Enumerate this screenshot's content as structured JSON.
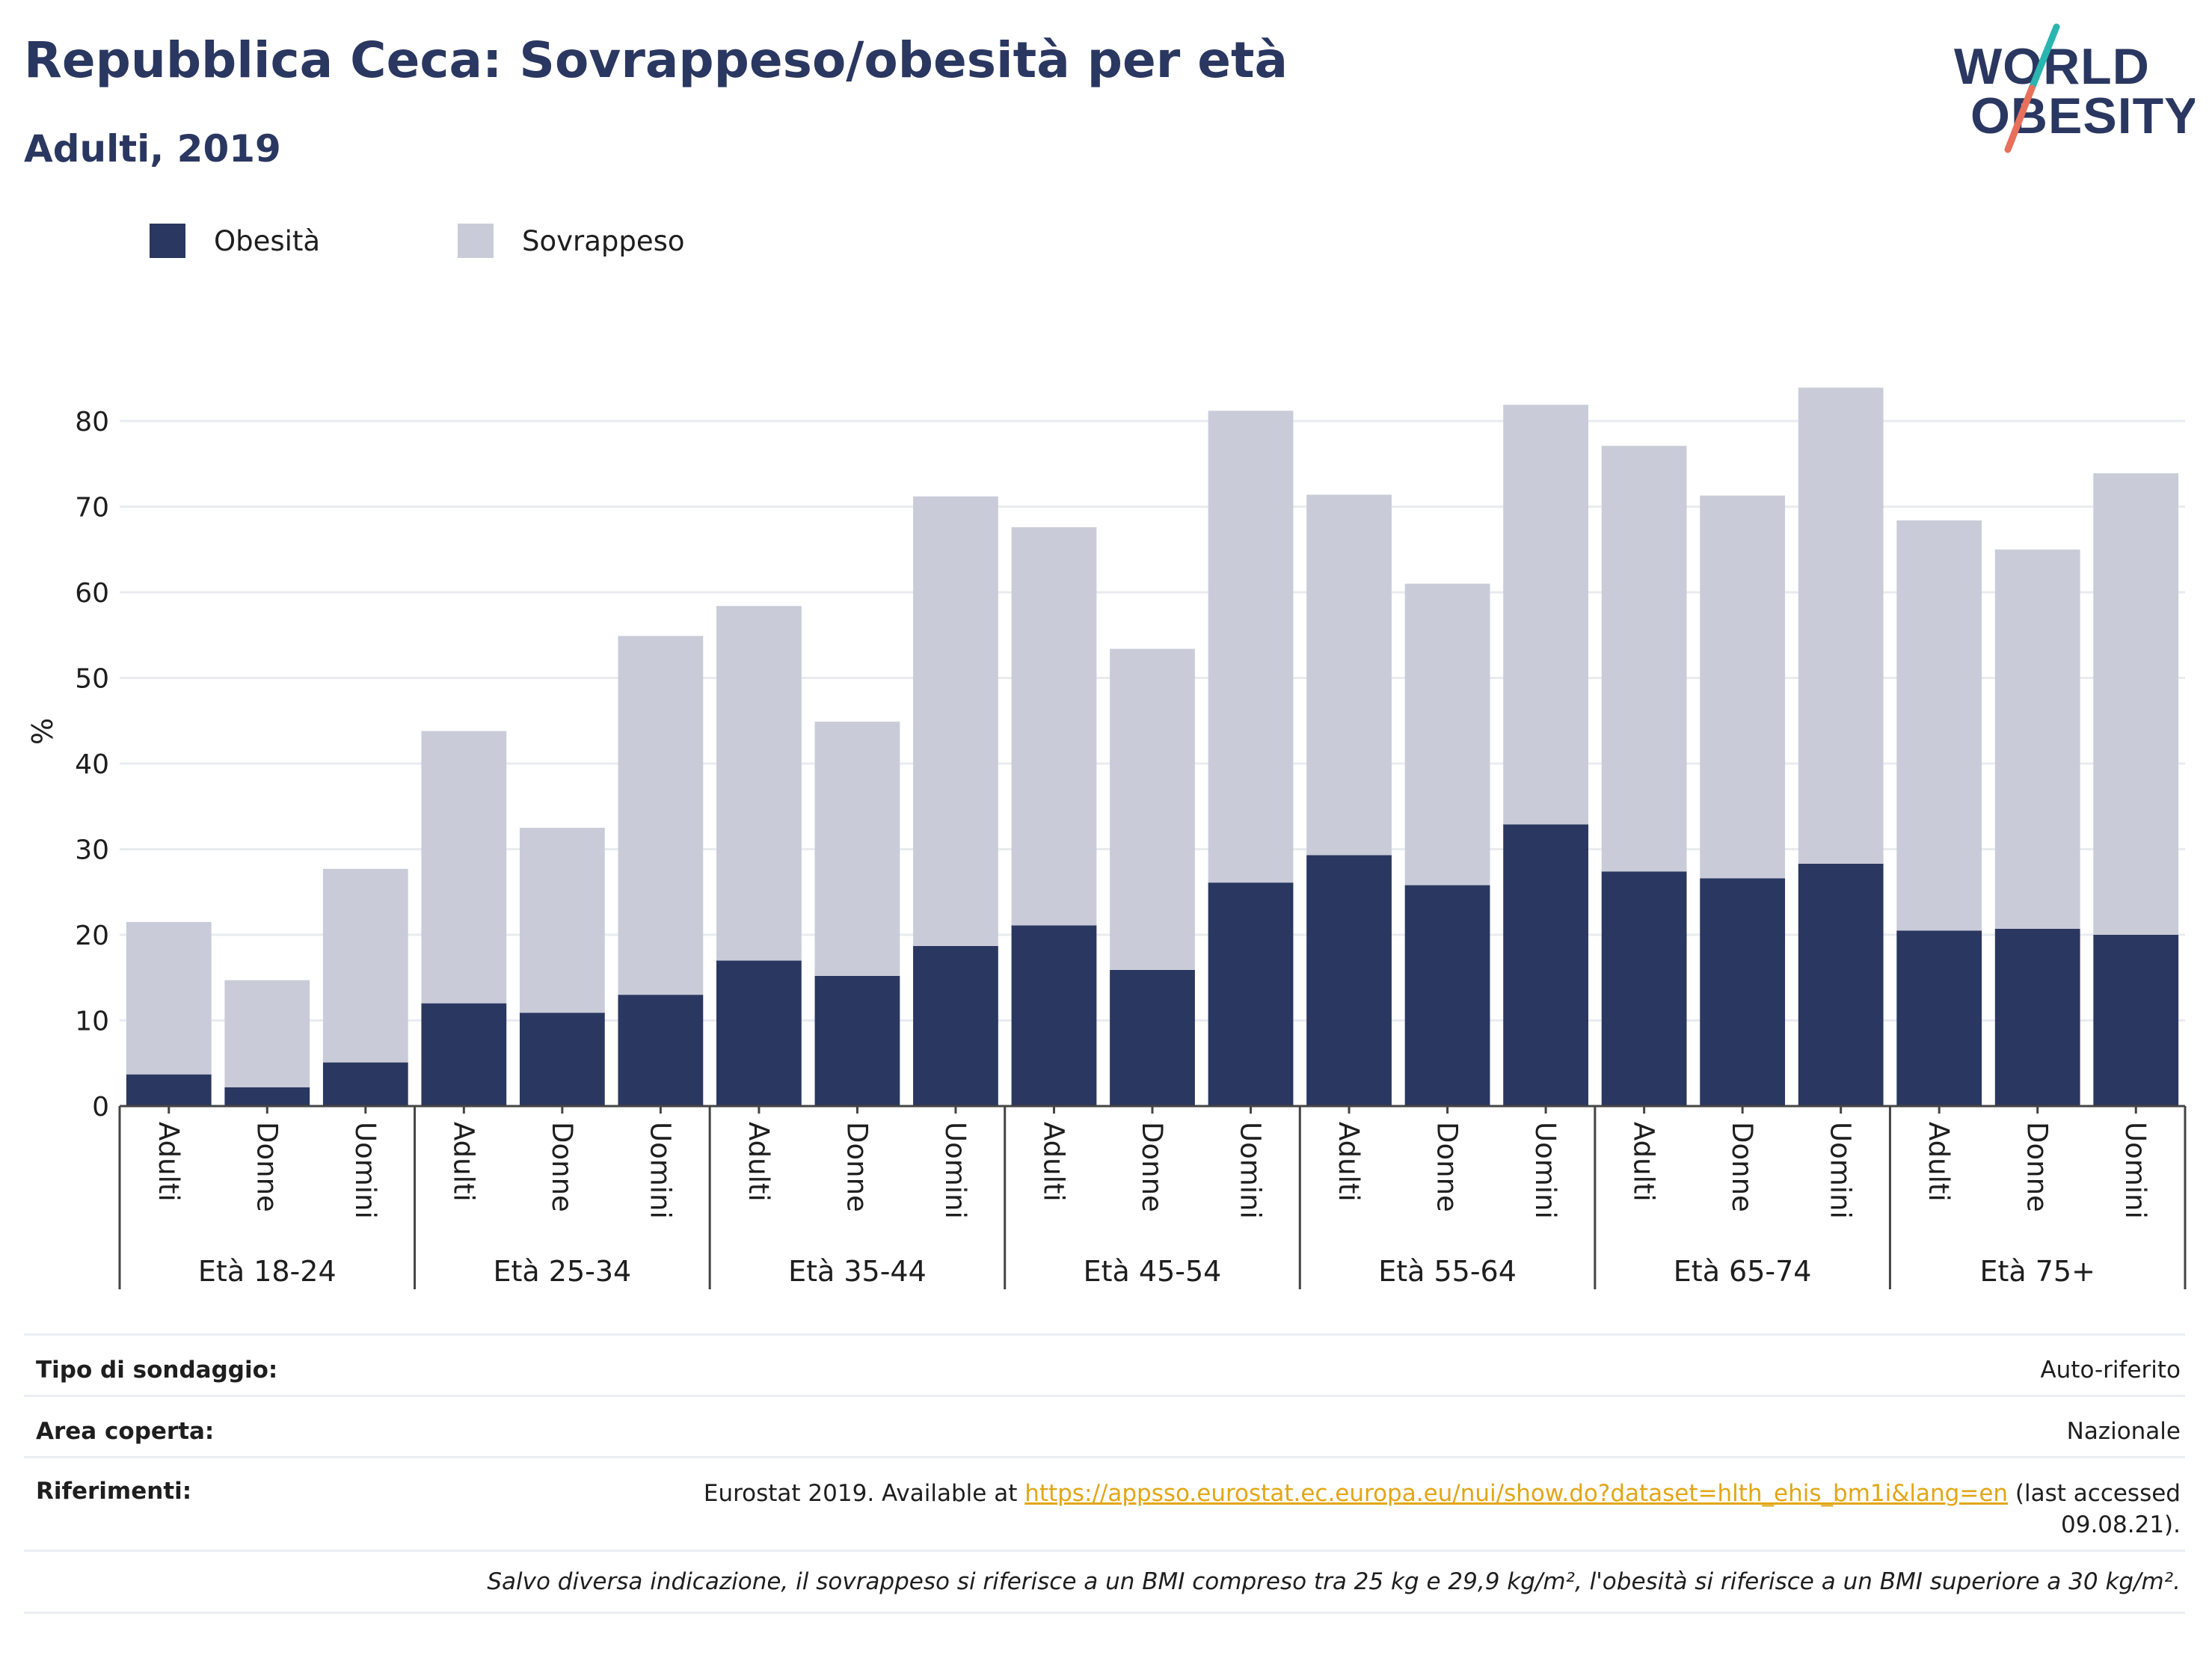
{
  "title": "Repubblica Ceca: Sovrappeso/obesità per età",
  "subtitle": "Adulti, 2019",
  "logo": {
    "line1": "WORLD",
    "line2": "OBESITY"
  },
  "legend": [
    {
      "label": "Obesità",
      "color": "#2a3760"
    },
    {
      "label": "Sovrappeso",
      "color": "#c9ccd8"
    }
  ],
  "chart_data": {
    "type": "bar",
    "stacked": true,
    "ylabel": "%",
    "ylim": [
      0,
      90
    ],
    "yticks": [
      0,
      10,
      20,
      30,
      40,
      50,
      60,
      70,
      80
    ],
    "grid": true,
    "legend_position": "top-left",
    "groups": [
      "Età 18-24",
      "Età 25-34",
      "Età 35-44",
      "Età 45-54",
      "Età 55-64",
      "Età 65-74",
      "Età 75+"
    ],
    "subcategories": [
      "Adulti",
      "Donne",
      "Uomini"
    ],
    "series": [
      {
        "name": "Obesità",
        "color": "#2a3760",
        "values": [
          3.7,
          2.2,
          5.1,
          12.0,
          10.9,
          13.0,
          17.0,
          15.2,
          18.7,
          21.1,
          15.9,
          26.1,
          29.3,
          25.8,
          32.9,
          27.4,
          26.6,
          28.3,
          20.5,
          20.7,
          20.0
        ]
      },
      {
        "name": "Sovrappeso",
        "color": "#c9ccd8",
        "values": [
          17.8,
          12.5,
          22.6,
          31.8,
          21.6,
          41.9,
          41.4,
          29.7,
          52.5,
          46.5,
          37.5,
          55.1,
          42.1,
          35.2,
          49.0,
          49.7,
          44.7,
          55.6,
          47.9,
          44.3,
          53.9
        ]
      }
    ]
  },
  "info": {
    "rows": [
      {
        "label": "Tipo di sondaggio:",
        "value": "Auto-riferito"
      },
      {
        "label": "Area coperta:",
        "value": "Nazionale"
      }
    ],
    "references": {
      "label": "Riferimenti:",
      "prefix": "Eurostat 2019. Available at ",
      "link": "https://appsso.eurostat.ec.europa.eu/nui/show.do?dataset=hlth_ehis_bm1i&lang=en",
      "suffix_line1": " (last accessed",
      "suffix_line2": "09.08.21)."
    },
    "note": "Salvo diversa indicazione, il sovrappeso si riferisce a un BMI compreso tra 25 kg e 29,9 kg/m², l'obesità si riferisce a un BMI superiore a 30 kg/m²."
  }
}
